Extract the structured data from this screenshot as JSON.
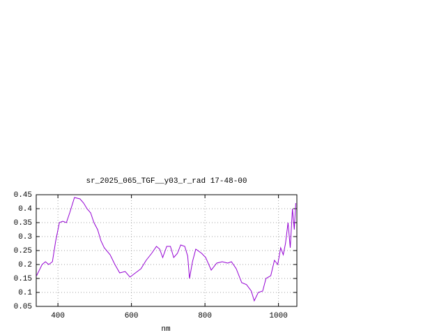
{
  "chart_data": {
    "type": "line",
    "title": "sr_2025_065_TGF__y03_r_rad 17-48-00",
    "xlabel": "nm",
    "xlim": [
      341,
      1050
    ],
    "ylim": [
      0.05,
      0.45
    ],
    "xticks": [
      400,
      600,
      800,
      1000
    ],
    "yticks": [
      0.05,
      0.1,
      0.15,
      0.2,
      0.25,
      0.3,
      0.35,
      0.4,
      0.45
    ],
    "grid": true,
    "series": [
      {
        "color": "#9400d3",
        "x": [
          342,
          357,
          366,
          375,
          385,
          394,
          404,
          413,
          423,
          432,
          445,
          460,
          470,
          479,
          489,
          498,
          508,
          517,
          526,
          542,
          555,
          568,
          583,
          596,
          611,
          626,
          640,
          655,
          668,
          677,
          685,
          696,
          706,
          715,
          725,
          734,
          745,
          753,
          758,
          766,
          775,
          791,
          802,
          817,
          832,
          847,
          862,
          872,
          885,
          900,
          913,
          926,
          934,
          945,
          957,
          966,
          979,
          989,
          998,
          1006,
          1013,
          1019,
          1026,
          1032,
          1038,
          1043,
          1047
        ],
        "values": [
          0.16,
          0.2,
          0.21,
          0.2,
          0.21,
          0.285,
          0.35,
          0.355,
          0.35,
          0.385,
          0.44,
          0.435,
          0.42,
          0.4,
          0.385,
          0.35,
          0.325,
          0.285,
          0.26,
          0.235,
          0.2,
          0.17,
          0.175,
          0.155,
          0.17,
          0.185,
          0.215,
          0.24,
          0.265,
          0.255,
          0.225,
          0.265,
          0.265,
          0.225,
          0.24,
          0.27,
          0.265,
          0.23,
          0.15,
          0.21,
          0.255,
          0.24,
          0.225,
          0.18,
          0.205,
          0.21,
          0.205,
          0.21,
          0.185,
          0.135,
          0.128,
          0.105,
          0.07,
          0.1,
          0.105,
          0.15,
          0.16,
          0.215,
          0.2,
          0.26,
          0.235,
          0.275,
          0.35,
          0.26,
          0.4,
          0.325,
          0.42
        ]
      }
    ]
  }
}
